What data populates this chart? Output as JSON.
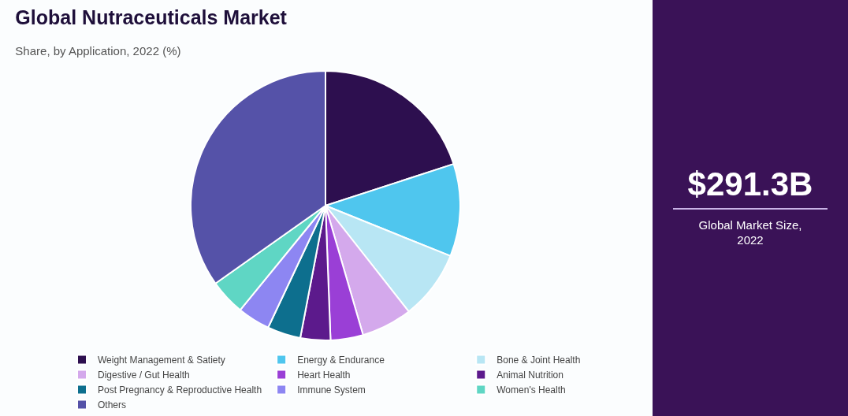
{
  "chart_data": {
    "type": "pie",
    "title": "Global Nutraceuticals Market",
    "subtitle": "Share, by Application, 2022 (%)",
    "categories": [
      "Weight Management & Satiety",
      "Energy & Endurance",
      "Bone & Joint Health",
      "Digestive / Gut Health",
      "Heart Health",
      "Animal Nutrition",
      "Post Pregnancy & Reproductive Health",
      "Immune System",
      "Women's Health",
      "Others"
    ],
    "values": [
      20,
      11.1,
      8.3,
      6.1,
      3.9,
      3.6,
      4.0,
      3.9,
      4.3,
      34.8
    ],
    "colors": [
      "#2d0f4f",
      "#4fc6ee",
      "#b8e6f4",
      "#d4a9ec",
      "#9a3fd6",
      "#5c1a8c",
      "#0d6f8e",
      "#8d86f2",
      "#5fd6c4",
      "#5552a8"
    ],
    "legend": "bottom",
    "annotations": [
      "$291.3B",
      "Global Market Size, 2022"
    ]
  }
}
